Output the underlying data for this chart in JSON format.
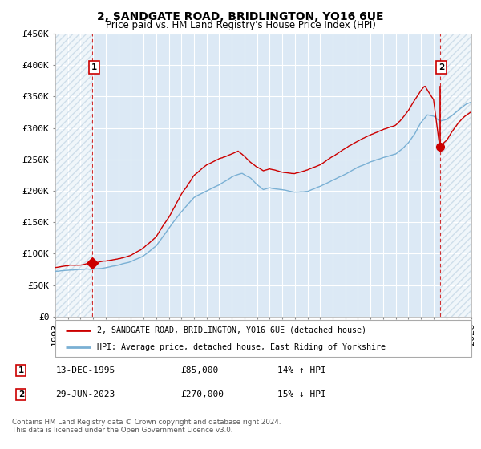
{
  "title": "2, SANDGATE ROAD, BRIDLINGTON, YO16 6UE",
  "subtitle": "Price paid vs. HM Land Registry's House Price Index (HPI)",
  "bg_color": "#dce9f5",
  "hatch_color": "#b8cfe0",
  "grid_color": "#ffffff",
  "red_line_color": "#cc0000",
  "blue_line_color": "#7ab0d4",
  "marker_color": "#cc0000",
  "vline_color": "#cc0000",
  "sale1_year": 1995.95,
  "sale1_price": 85000,
  "sale1_label": "1",
  "sale1_date": "13-DEC-1995",
  "sale1_hpi": "14% ↑ HPI",
  "sale2_year": 2023.49,
  "sale2_price": 270000,
  "sale2_label": "2",
  "sale2_date": "29-JUN-2023",
  "sale2_hpi": "15% ↓ HPI",
  "xmin": 1993,
  "xmax": 2026,
  "ymin": 0,
  "ymax": 450000,
  "legend_line1": "2, SANDGATE ROAD, BRIDLINGTON, YO16 6UE (detached house)",
  "legend_line2": "HPI: Average price, detached house, East Riding of Yorkshire",
  "footnote": "Contains HM Land Registry data © Crown copyright and database right 2024.\nThis data is licensed under the Open Government Licence v3.0.",
  "yticks": [
    0,
    50000,
    100000,
    150000,
    200000,
    250000,
    300000,
    350000,
    400000,
    450000
  ],
  "ytick_labels": [
    "£0",
    "£50K",
    "£100K",
    "£150K",
    "£200K",
    "£250K",
    "£300K",
    "£350K",
    "£400K",
    "£450K"
  ]
}
